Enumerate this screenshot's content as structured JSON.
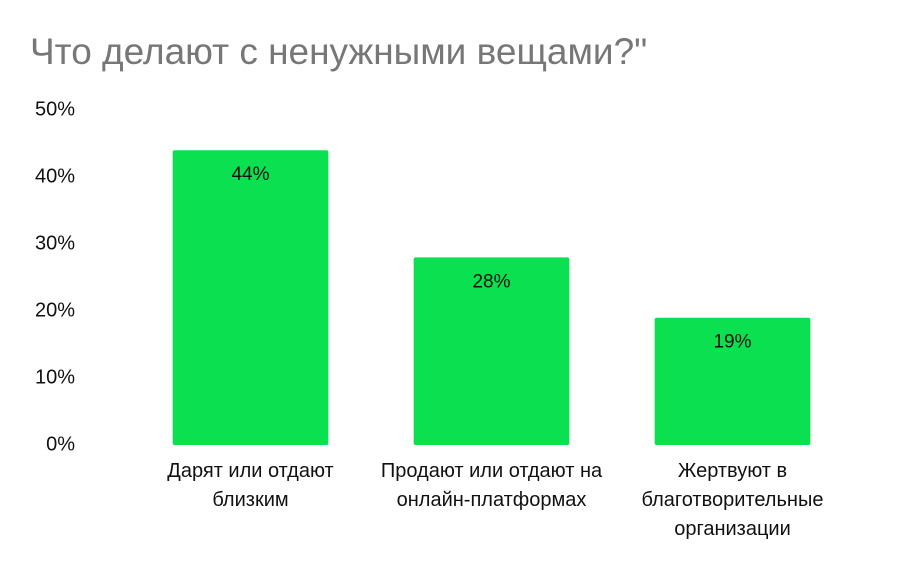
{
  "chart_data": {
    "type": "bar",
    "title": "Что делают с ненужными вещами?\"",
    "categories": [
      "Дарят или отдают близким",
      "Продают или отдают на онлайн-платформах",
      "Жертвуют в благотворительные организации"
    ],
    "values": [
      44,
      28,
      19
    ],
    "value_labels": [
      "44%",
      "28%",
      "19%"
    ],
    "color": "#0be050",
    "ylim": [
      0,
      50
    ],
    "yticks": [
      {
        "value": 0,
        "label": "0%"
      },
      {
        "value": 10,
        "label": "10%"
      },
      {
        "value": 20,
        "label": "20%"
      },
      {
        "value": 30,
        "label": "30%"
      },
      {
        "value": 40,
        "label": "40%"
      },
      {
        "value": 50,
        "label": "50%"
      }
    ],
    "grid": false
  }
}
